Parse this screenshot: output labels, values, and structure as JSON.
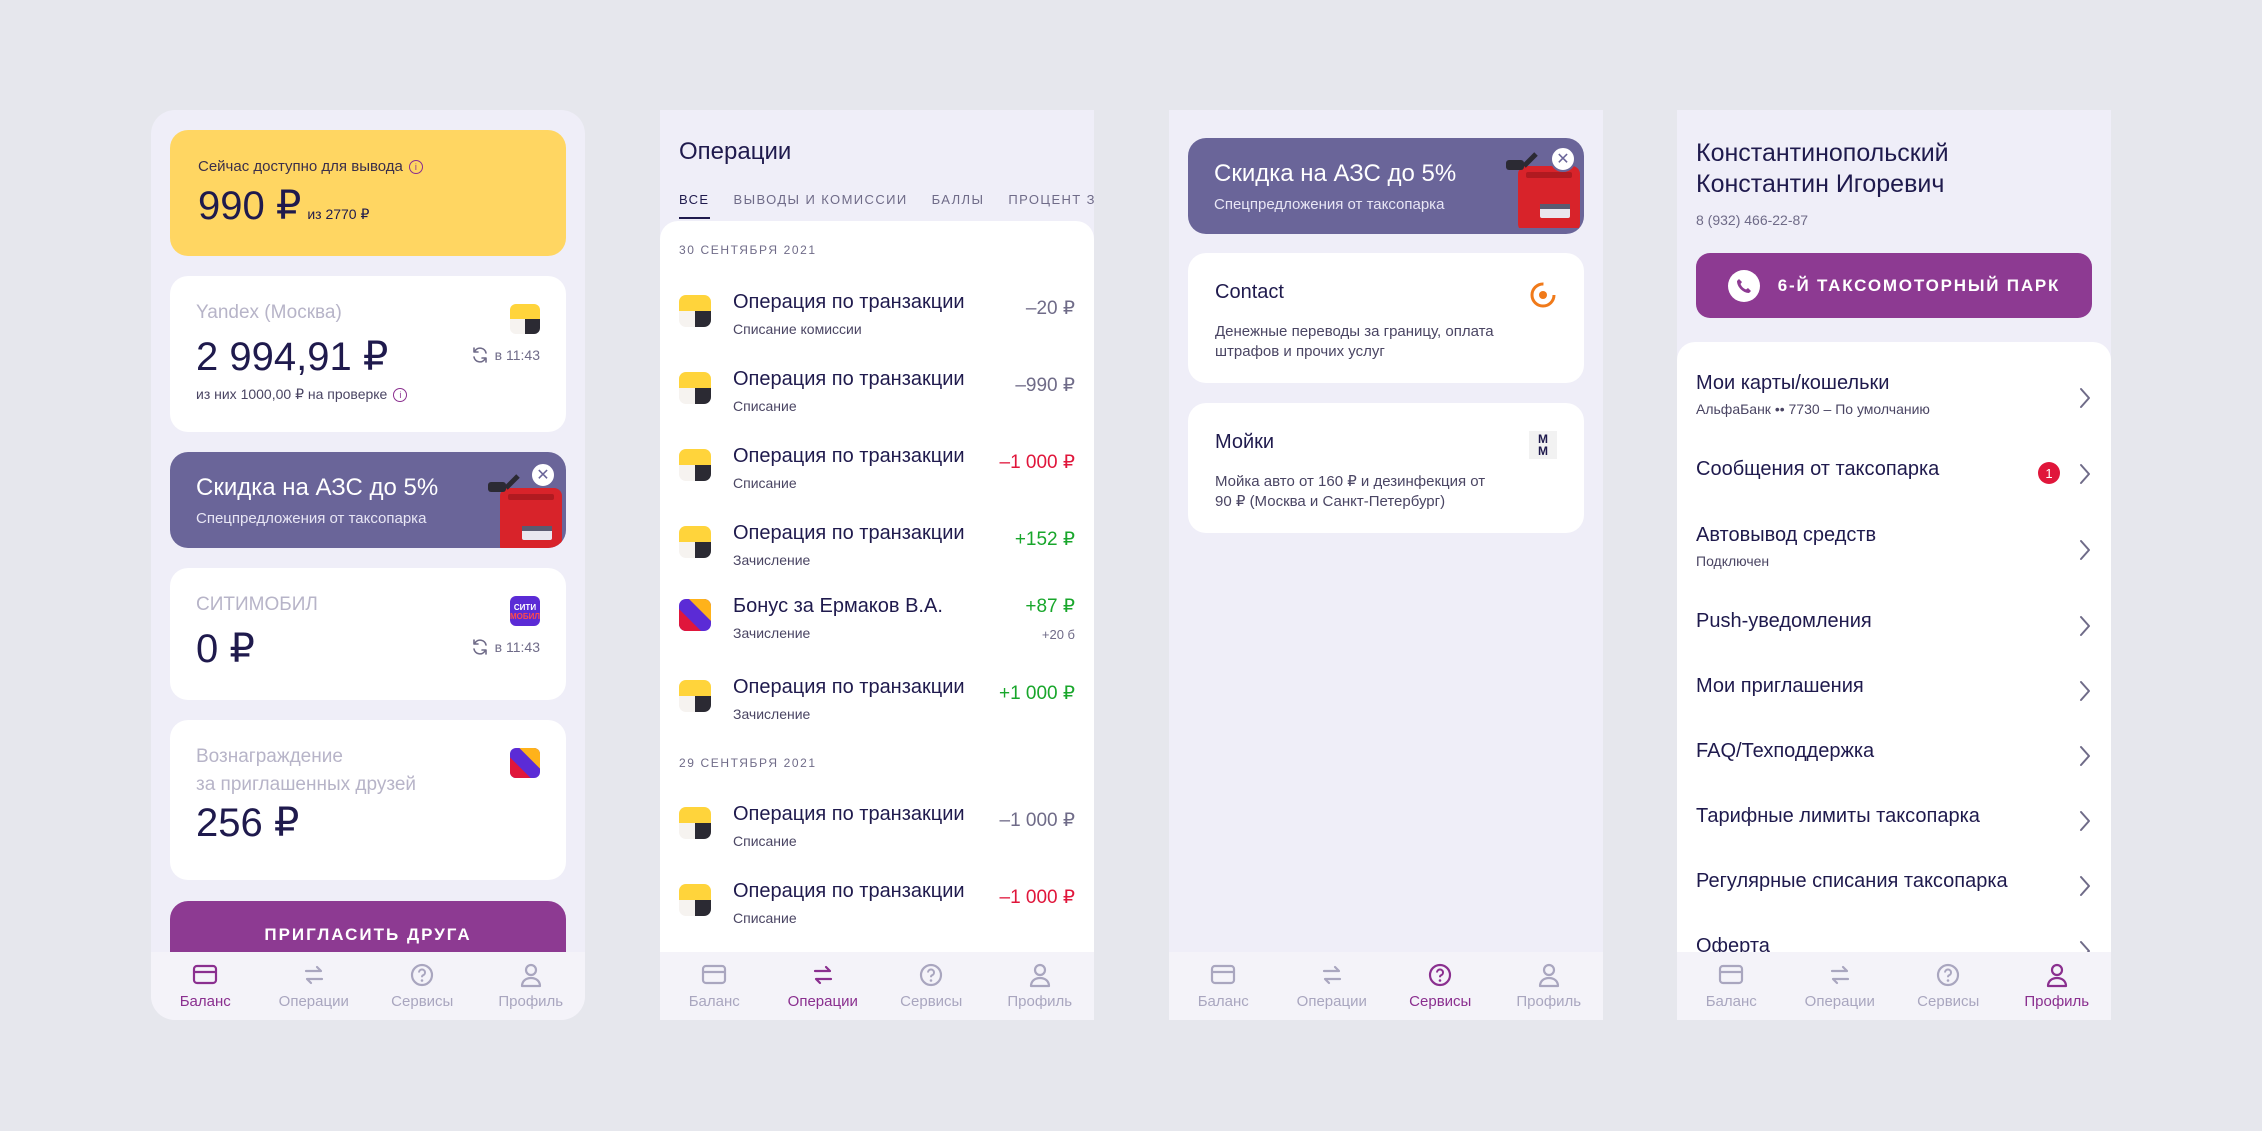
{
  "nav": {
    "balance": "Баланс",
    "operations": "Операции",
    "services": "Сервисы",
    "profile": "Профиль"
  },
  "balance": {
    "available_label": "Сейчас доступно для вывода",
    "available_amount": "990 ₽",
    "available_of": "из 2770 ₽",
    "yandex": {
      "title": "Yandex (Москва)",
      "amount": "2 994,91 ₽",
      "updated": "в 11:43",
      "sub": "из них 1000,00 ₽ на проверке"
    },
    "promo": {
      "title": "Скидка на АЗС до 5%",
      "subtitle": "Спецпредложения от таксопарка"
    },
    "citymobil": {
      "title": "СИТИМОБИЛ",
      "amount": "0 ₽",
      "updated": "в 11:43",
      "logo_text_1": "СИТИ",
      "logo_text_2": "МОБИЛ"
    },
    "reward": {
      "title_1": "Вознаграждение",
      "title_2": "за приглашенных друзей",
      "amount": "256 ₽"
    },
    "invite_button": "ПРИГЛАСИТЬ ДРУГА"
  },
  "operations": {
    "title": "Операции",
    "tabs": [
      "ВСЕ",
      "ВЫВОДЫ И КОМИССИИ",
      "БАЛЛЫ",
      "ПРОЦЕНТ ЗА"
    ],
    "date1": "30 СЕНТЯБРЯ 2021",
    "date2": "29 СЕНТЯБРЯ 2021",
    "items": [
      {
        "title": "Операция по транзакции",
        "sub": "Списание комиссии",
        "amount": "–20 ₽"
      },
      {
        "title": "Операция по транзакции",
        "sub": "Списание",
        "amount": "–990 ₽"
      },
      {
        "title": "Операция по транзакции",
        "sub": "Списание",
        "amount": "–1 000 ₽"
      },
      {
        "title": "Операция по транзакции",
        "sub": "Зачисление",
        "amount": "+152 ₽"
      },
      {
        "title": "Бонус за Ермаков В.А.",
        "sub": "Зачисление",
        "amount": "+87 ₽",
        "extra": "+20 б"
      },
      {
        "title": "Операция по транзакции",
        "sub": "Зачисление",
        "amount": "+1 000 ₽"
      },
      {
        "title": "Операция по транзакции",
        "sub": "Списание",
        "amount": "–1 000 ₽"
      },
      {
        "title": "Операция по транзакции",
        "sub": "Списание",
        "amount": "–1 000 ₽"
      }
    ]
  },
  "services": {
    "promo": {
      "title": "Скидка на АЗС до 5%",
      "subtitle": "Спецпредложения от таксопарка"
    },
    "contact": {
      "title": "Contact",
      "desc": "Денежные переводы за границу, оплата штрафов и прочих услуг"
    },
    "wash": {
      "title": "Мойки",
      "desc": "Мойка авто от 160 ₽ и дезинфекция от 90 ₽ (Москва и Санкт-Петербург)",
      "logo_text": "М"
    }
  },
  "profile": {
    "name_1": "Константинопольский",
    "name_2": "Константин Игоревич",
    "phone": "8 (932) 466-22-87",
    "park_button": "6-Й ТАКСОМОТОРНЫЙ ПАРК",
    "menu": [
      {
        "title": "Мои карты/кошельки",
        "sub": "АльфаБанк •• 7730 – По умолчанию"
      },
      {
        "title": "Сообщения от таксопарка",
        "badge": "1"
      },
      {
        "title": "Автовывод средств",
        "sub": "Подключен"
      },
      {
        "title": "Push-уведомления"
      },
      {
        "title": "Мои приглашения"
      },
      {
        "title": "FAQ/Техподдержка"
      },
      {
        "title": "Тарифные лимиты таксопарка"
      },
      {
        "title": "Регулярные списания таксопарка"
      },
      {
        "title": "Оферта"
      }
    ]
  },
  "colors": {
    "accent": "#8d3a92",
    "yellow": "#ffd662",
    "promo": "#6a6599",
    "text": "#1f1a4d",
    "negative": "#e0163b",
    "positive": "#18a62b"
  }
}
